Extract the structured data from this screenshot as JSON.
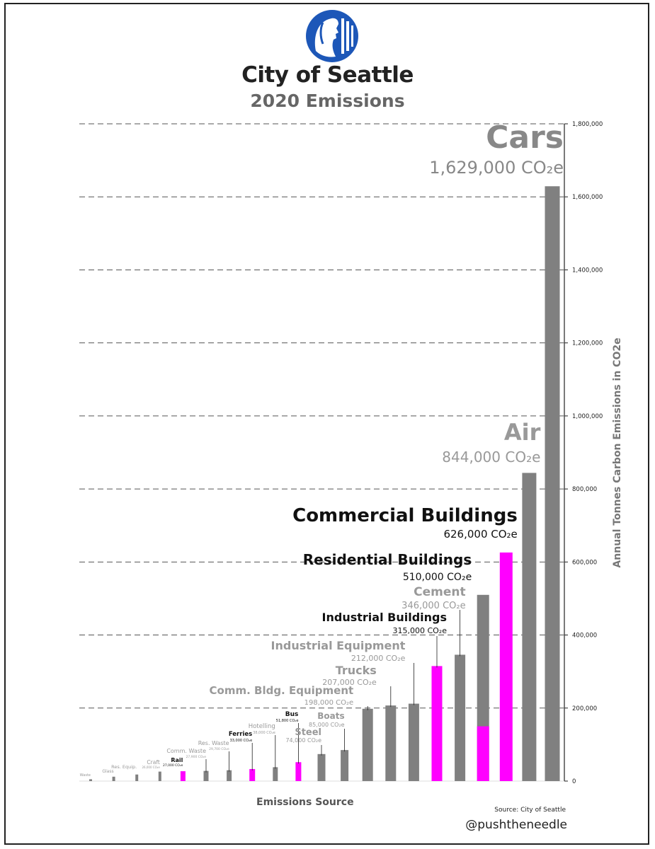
{
  "header": {
    "title": "City of Seattle",
    "subtitle": "2020 Emissions"
  },
  "footer": {
    "source": "Source: City of Seattle",
    "handle": "@pushtheneedle"
  },
  "colors": {
    "gray_bar": "#808080",
    "magenta_bar": "#ff00ff",
    "logo_blue": "#1d57b8"
  },
  "chart_data": {
    "type": "bar",
    "title": "City of Seattle 2020 Emissions",
    "xlabel": "Emissions Source",
    "ylabel": "Annual Tonnes Carbon Emissions in CO2e",
    "ylim": [
      0,
      1800000
    ],
    "yticks": [
      "0",
      "200,000",
      "400,000",
      "600,000",
      "800,000",
      "1,000,000",
      "1,200,000",
      "1,400,000",
      "1,600,000",
      "1,800,000"
    ],
    "grid": true,
    "bars": [
      {
        "name": "Waste",
        "value": 5000,
        "label": "",
        "color": "gray",
        "style": "tiny"
      },
      {
        "name": "Glass",
        "value": 12000,
        "label": "",
        "color": "gray",
        "style": "tiny"
      },
      {
        "name": "Res. Equip.",
        "value": 18000,
        "label": "",
        "color": "gray",
        "style": "tiny"
      },
      {
        "name": "Craft",
        "value": 26000,
        "label": "26,000 CO₂e",
        "color": "gray",
        "style": "tiny"
      },
      {
        "name": "Rail",
        "value": 27000,
        "label": "27,000 CO₂e",
        "color": "magenta",
        "style": "tinybold"
      },
      {
        "name": "Comm. Waste",
        "value": 27900,
        "label": "27,900 CO₂e",
        "color": "gray",
        "style": "small"
      },
      {
        "name": "Res. Waste",
        "value": 29700,
        "label": "29,700 CO₂e",
        "color": "gray",
        "style": "small"
      },
      {
        "name": "Ferries",
        "value": 33000,
        "label": "33,000 CO₂e",
        "color": "magenta",
        "style": "smallbold"
      },
      {
        "name": "Hotelling",
        "value": 38000,
        "label": "38,000 CO₂e",
        "color": "gray",
        "style": "small"
      },
      {
        "name": "Bus",
        "value": 51800,
        "label": "51,800 CO₂e",
        "color": "magenta",
        "style": "smallbold"
      },
      {
        "name": "Steel",
        "value": 74000,
        "label": "74,000 CO₂e",
        "color": "gray",
        "style": "mid"
      },
      {
        "name": "Boats",
        "value": 85000,
        "label": "85,000 CO₂e",
        "color": "gray",
        "style": "mid"
      },
      {
        "name": "Comm. Bldg. Equipment",
        "value": 198000,
        "label": "198,000 CO₂e",
        "color": "gray",
        "style": "med"
      },
      {
        "name": "Trucks",
        "value": 207000,
        "label": "207,000 CO₂e",
        "color": "gray",
        "style": "med"
      },
      {
        "name": "Industrial Equipment",
        "value": 212000,
        "label": "212,000 CO₂e",
        "color": "gray",
        "style": "med"
      },
      {
        "name": "Industrial Buildings",
        "value": 315000,
        "label": "315,000 CO₂e",
        "color": "magenta",
        "style": "medbold"
      },
      {
        "name": "Cement",
        "value": 346000,
        "label": "346,000 CO₂e",
        "color": "gray",
        "style": "med"
      },
      {
        "name": "Residential Buildings",
        "value": 510000,
        "magenta_part": 150000,
        "label": "510,000 CO₂e",
        "color": "gray",
        "style": "large"
      },
      {
        "name": "Commercial Buildings",
        "value": 626000,
        "label": "626,000 CO₂e",
        "color": "magenta",
        "style": "xlarge"
      },
      {
        "name": "Air",
        "value": 844000,
        "label": "844,000 CO₂e",
        "color": "gray",
        "style": "air"
      },
      {
        "name": "Cars",
        "value": 1629000,
        "label": "1,629,000 CO₂e",
        "color": "gray",
        "style": "cars"
      }
    ]
  }
}
